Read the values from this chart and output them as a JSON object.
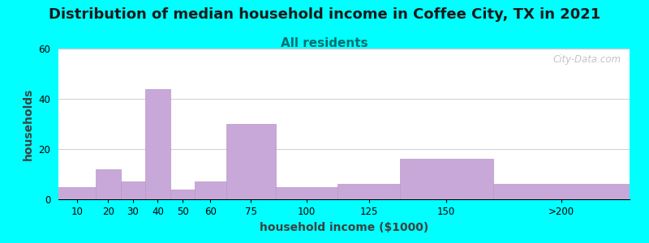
{
  "title": "Distribution of median household income in Coffee City, TX in 2021",
  "subtitle": "All residents",
  "xlabel": "household income ($1000)",
  "ylabel": "households",
  "background_color": "#00FFFF",
  "bar_color": "#c8a8d8",
  "bar_edge_color": "#b898c8",
  "grid_color": "#c8c8c8",
  "watermark_text": "City-Data.com",
  "bin_edges": [
    0,
    15,
    25,
    35,
    45,
    55,
    67.5,
    87.5,
    112.5,
    137.5,
    175,
    230
  ],
  "bin_labels": [
    "10",
    "20",
    "30",
    "40",
    "50",
    "60",
    "75",
    "100",
    "125",
    "150",
    ">200"
  ],
  "values": [
    5,
    12,
    7,
    44,
    4,
    7,
    30,
    5,
    6,
    16,
    6
  ],
  "ylim": [
    0,
    60
  ],
  "yticks": [
    0,
    20,
    40,
    60
  ],
  "xlim": [
    0,
    230
  ],
  "title_fontsize": 13,
  "subtitle_fontsize": 11,
  "axis_label_fontsize": 10,
  "tick_fontsize": 8.5
}
